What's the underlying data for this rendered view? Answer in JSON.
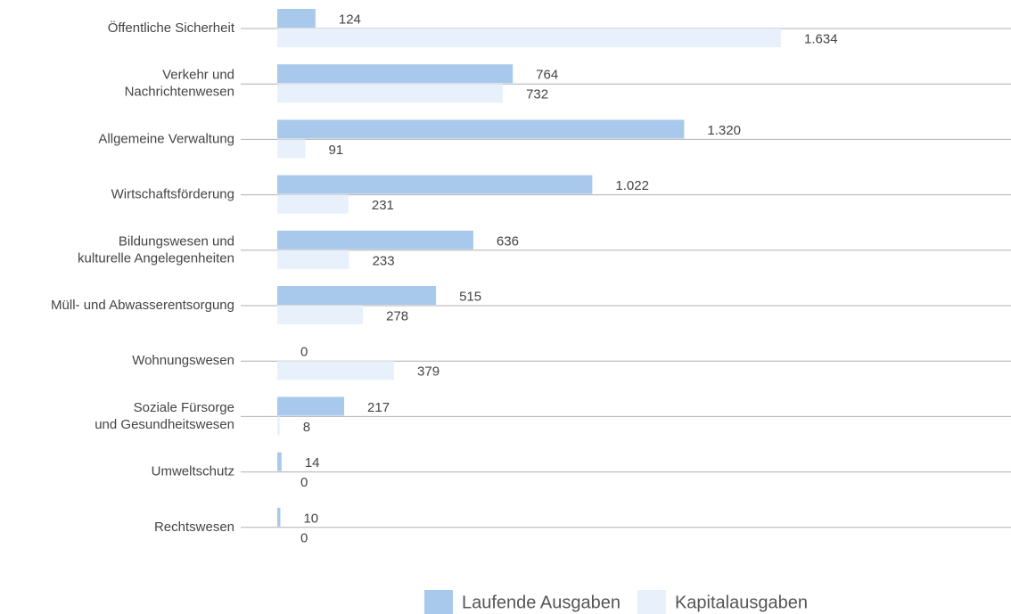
{
  "chart_data": {
    "type": "bar",
    "orientation": "horizontal",
    "categories": [
      [
        "Öffentliche Sicherheit"
      ],
      [
        "Verkehr und",
        "Nachrichtenwesen"
      ],
      [
        "Allgemeine Verwaltung"
      ],
      [
        "Wirtschaftsförderung"
      ],
      [
        "Bildungswesen und",
        "kulturelle Angelegenheiten"
      ],
      [
        "Müll- und Abwasserentsorgung"
      ],
      [
        "Wohnungswesen"
      ],
      [
        "Soziale Fürsorge",
        "und Gesundheitswesen"
      ],
      [
        "Umweltschutz"
      ],
      [
        "Rechtswesen"
      ]
    ],
    "series": [
      {
        "name": "Laufende Ausgaben",
        "color": "#a9c9ec",
        "values": [
          124,
          764,
          1320,
          1022,
          636,
          515,
          0,
          217,
          14,
          10
        ],
        "value_labels": [
          "124",
          "764",
          "1.320",
          "1.022",
          "636",
          "515",
          "0",
          "217",
          "14",
          "10"
        ]
      },
      {
        "name": "Kapitalausgaben",
        "color": "#e8f1fb",
        "values": [
          1634,
          732,
          91,
          231,
          233,
          278,
          379,
          8,
          0,
          0
        ],
        "value_labels": [
          "1.634",
          "732",
          "91",
          "231",
          "233",
          "278",
          "379",
          "8",
          "0",
          "0"
        ]
      }
    ],
    "legend": "bottom"
  }
}
